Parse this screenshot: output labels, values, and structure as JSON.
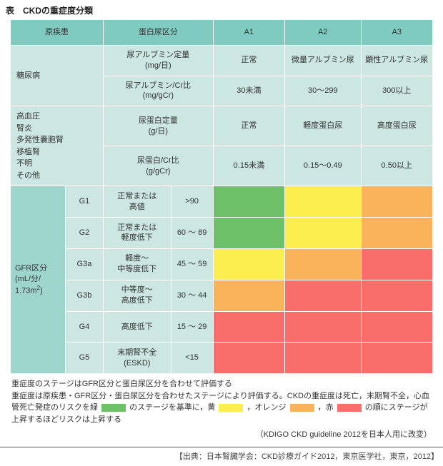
{
  "title": "表　CKDの重症度分類",
  "colors": {
    "header": "#80cbc0",
    "subheader": "#cce6e2",
    "gfr_header": "#9dd4cc",
    "green": "#6ec168",
    "yellow": "#fcee4f",
    "orange": "#f9b45b",
    "red": "#f96d6a"
  },
  "header": {
    "c1": "原疾患",
    "c2": "蛋白尿区分",
    "a1": "A1",
    "a2": "A2",
    "a3": "A3"
  },
  "diabetes": {
    "label": "糖尿病",
    "row1_metric": "尿アルブミン定量\n(mg/日)",
    "row1_a1": "正常",
    "row1_a2": "微量アルブミン尿",
    "row1_a3": "顕性アルブミン尿",
    "row2_metric": "尿アルブミン/Cr比\n(mg/gCr)",
    "row2_a1": "30未満",
    "row2_a2": "30～299",
    "row2_a3": "300以上"
  },
  "others": {
    "label": "高血圧\n腎炎\n多発性囊胞腎\n移植腎\n不明\nその他",
    "row1_metric": "尿蛋白定量\n(g/日)",
    "row1_a1": "正常",
    "row1_a2": "軽度蛋白尿",
    "row1_a3": "高度蛋白尿",
    "row2_metric": "尿蛋白/Cr比\n(g/gCr)",
    "row2_a1": "0.15未満",
    "row2_a2": "0.15～0.49",
    "row2_a3": "0.50以上"
  },
  "gfr": {
    "label_html": "GFR区分<br>(mL/分/<br>1.73m<sup>2</sup>)",
    "rows": [
      {
        "code": "G1",
        "desc": "正常または\n高値",
        "range": ">90",
        "cells": [
          "green",
          "yellow",
          "orange"
        ]
      },
      {
        "code": "G2",
        "desc": "正常または\n軽度低下",
        "range": "60 ～ 89",
        "cells": [
          "green",
          "yellow",
          "orange"
        ]
      },
      {
        "code": "G3a",
        "desc": "軽度～\n中等度低下",
        "range": "45 ～ 59",
        "cells": [
          "yellow",
          "orange",
          "red"
        ]
      },
      {
        "code": "G3b",
        "desc": "中等度～\n高度低下",
        "range": "30 ～ 44",
        "cells": [
          "orange",
          "red",
          "red"
        ]
      },
      {
        "code": "G4",
        "desc": "高度低下",
        "range": "15 ～ 29",
        "cells": [
          "red",
          "red",
          "red"
        ]
      },
      {
        "code": "G5",
        "desc": "末期腎不全\n(ESKD)",
        "range": "<15",
        "cells": [
          "red",
          "red",
          "red"
        ]
      }
    ]
  },
  "notes": {
    "line1": "重症度のステージはGFR区分と蛋白尿区分を合わせて評価する",
    "line2a": "重症度は原疾患・GFR区分・蛋白尿区分を合わせたステージにより評価する。CKDの重症度は死亡，末期腎不全，心血管死亡発症のリスクを緑",
    "line2b": "のステージを基準に，黄",
    "line2c": "，オレンジ",
    "line2d": "，赤",
    "line2e": "の順にステージが上昇するほどリスクは上昇する"
  },
  "source": "（KDIGO CKD guideline 2012を日本人用に改変）",
  "credit": "【出典：日本腎臓学会：CKD診療ガイド2012，東京医学社，東京，2012】"
}
